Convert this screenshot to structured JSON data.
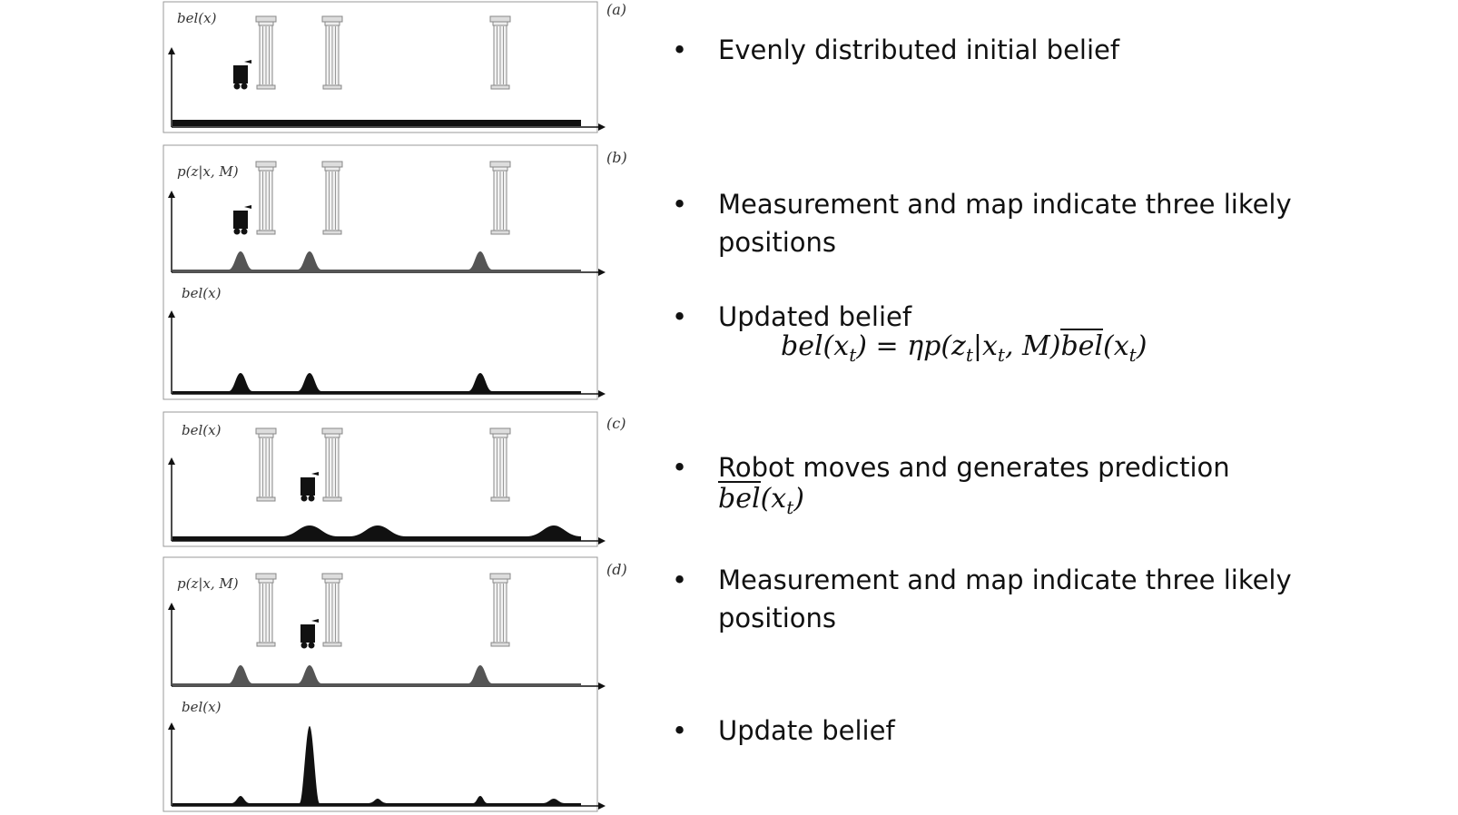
{
  "figure": {
    "panels": [
      {
        "letter": "(a)",
        "plots": [
          {
            "label": "bel(x)"
          }
        ]
      },
      {
        "letter": "(b)",
        "plots": [
          {
            "label": "p(z|x, M)"
          },
          {
            "label": "bel(x)"
          }
        ]
      },
      {
        "letter": "(c)",
        "plots": [
          {
            "label": "bel(x)"
          }
        ]
      },
      {
        "letter": "(d)",
        "plots": [
          {
            "label": "p(z|x, M)"
          },
          {
            "label": "bel(x)"
          }
        ]
      }
    ]
  },
  "bullets": [
    {
      "text": "Evenly distributed initial belief"
    },
    {
      "text": "Measurement and map indicate three likely positions"
    },
    {
      "text": "Updated belief"
    },
    {
      "text": "Robot moves and generates prediction"
    },
    {
      "text": "Measurement and map indicate three likely positions"
    },
    {
      "text": "Update belief"
    }
  ],
  "formulas": {
    "update_lhs": "bel(x",
    "update_lhs_sub": "t",
    "update_eq": ") =  ηp(z",
    "update_z_sub": "t",
    "update_mid": "|x",
    "update_mid_sub": "t",
    "update_m": ", M)",
    "update_bar": "bel",
    "update_tail": "(x",
    "update_tail_sub": "t",
    "update_close": ")",
    "pred_bar": "bel",
    "pred_tail": "(x",
    "pred_sub": "t",
    "pred_close": ")",
    "bullet_glyph": "•"
  }
}
